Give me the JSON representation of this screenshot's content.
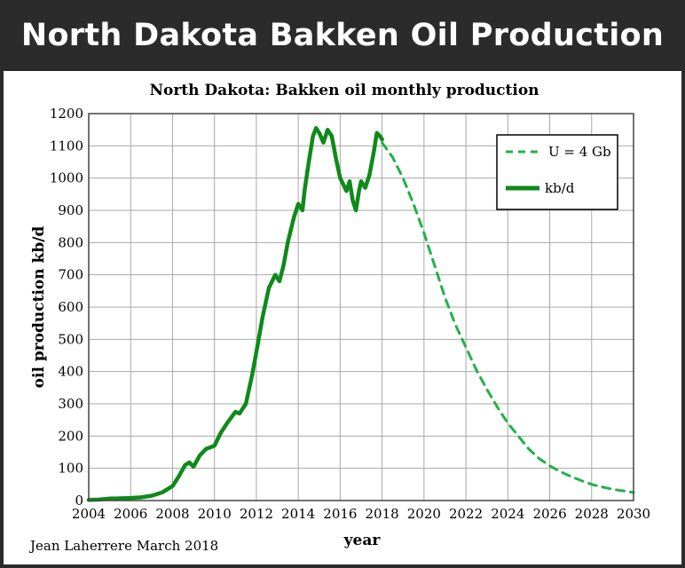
{
  "banner": {
    "title": "North Dakota Bakken Oil Production"
  },
  "chart_data": {
    "type": "line",
    "title": "North Dakota: Bakken oil monthly production",
    "xlabel": "year",
    "ylabel": "oil production kb/d",
    "xlim": [
      2004,
      2030
    ],
    "ylim": [
      0,
      1200
    ],
    "x_ticks": [
      "2004",
      "2006",
      "2008",
      "2010",
      "2012",
      "2014",
      "2016",
      "2018",
      "2020",
      "2022",
      "2024",
      "2026",
      "2028",
      "2030"
    ],
    "y_ticks": [
      "0",
      "100",
      "200",
      "300",
      "400",
      "500",
      "600",
      "700",
      "800",
      "900",
      "1000",
      "1100",
      "1200"
    ],
    "grid": true,
    "legend_position": "top-right",
    "colors": {
      "series": "#0f8a1a",
      "forecast": "#22b04a",
      "grid": "#a8a8a8"
    },
    "credit": "Jean Laherrere March 2018",
    "series": [
      {
        "name": "U = 4 Gb",
        "style": "dashed",
        "x": [
          2018.0,
          2018.5,
          2019.0,
          2019.5,
          2020.0,
          2020.5,
          2021.0,
          2021.5,
          2022.0,
          2022.5,
          2023.0,
          2023.5,
          2024.0,
          2024.5,
          2025.0,
          2025.5,
          2026.0,
          2026.5,
          2027.0,
          2027.5,
          2028.0,
          2028.5,
          2029.0,
          2029.5,
          2030.0
        ],
        "y": [
          1110,
          1065,
          1000,
          920,
          830,
          730,
          630,
          545,
          475,
          405,
          345,
          290,
          240,
          200,
          160,
          130,
          108,
          90,
          75,
          62,
          50,
          42,
          35,
          30,
          25
        ]
      },
      {
        "name": "kb/d",
        "style": "solid",
        "x": [
          2004.0,
          2004.5,
          2005.0,
          2005.5,
          2006.0,
          2006.5,
          2007.0,
          2007.5,
          2008.0,
          2008.3,
          2008.6,
          2008.8,
          2009.0,
          2009.3,
          2009.6,
          2010.0,
          2010.3,
          2010.6,
          2011.0,
          2011.2,
          2011.5,
          2011.8,
          2012.0,
          2012.3,
          2012.6,
          2012.9,
          2013.1,
          2013.3,
          2013.5,
          2013.8,
          2014.0,
          2014.2,
          2014.3,
          2014.5,
          2014.7,
          2014.85,
          2015.0,
          2015.2,
          2015.4,
          2015.6,
          2015.8,
          2016.0,
          2016.15,
          2016.3,
          2016.45,
          2016.6,
          2016.75,
          2016.9,
          2017.0,
          2017.2,
          2017.4,
          2017.6,
          2017.75,
          2017.9,
          2018.0
        ],
        "y": [
          2,
          3,
          6,
          7,
          8,
          10,
          15,
          25,
          45,
          75,
          110,
          118,
          105,
          140,
          160,
          170,
          210,
          240,
          275,
          270,
          300,
          390,
          460,
          570,
          660,
          700,
          680,
          730,
          800,
          880,
          920,
          900,
          960,
          1050,
          1130,
          1155,
          1140,
          1110,
          1150,
          1130,
          1060,
          1000,
          980,
          960,
          990,
          930,
          900,
          960,
          990,
          970,
          1010,
          1080,
          1140,
          1130,
          1120
        ]
      }
    ]
  }
}
